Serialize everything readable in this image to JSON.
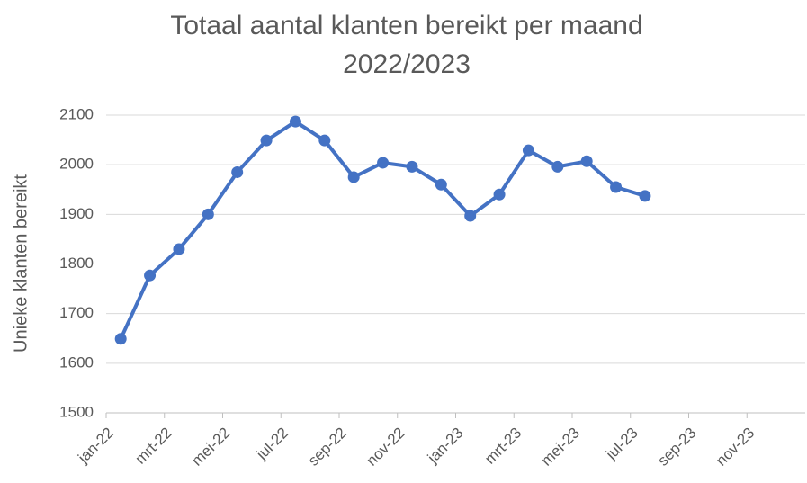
{
  "chart_data": {
    "type": "line",
    "title": [
      "Totaal aantal  klanten bereikt per maand",
      "2022/2023"
    ],
    "ylabel": "Unieke klanten bereikt",
    "categories": [
      "jan-22",
      null,
      "mrt-22",
      null,
      "mei-22",
      null,
      "jul-22",
      null,
      "sep-22",
      null,
      "nov-22",
      null,
      "jan-23",
      null,
      "mrt-23",
      null,
      "mei-23",
      null,
      "jul-23",
      null,
      "sep-23",
      null,
      "nov-23",
      null
    ],
    "series": [
      {
        "name": "Unieke klanten bereikt",
        "color": "#4472c4",
        "values": [
          1649,
          1777,
          1830,
          1900,
          1985,
          2049,
          2087,
          2049,
          1975,
          2004,
          1996,
          1960,
          1897,
          1940,
          2029,
          1996,
          2007,
          1955,
          1937,
          null,
          null,
          null,
          null,
          null
        ]
      }
    ],
    "ylim": [
      1500,
      2100
    ],
    "yticks": [
      1500,
      1600,
      1700,
      1800,
      1900,
      2000,
      2100
    ],
    "grid": true
  }
}
